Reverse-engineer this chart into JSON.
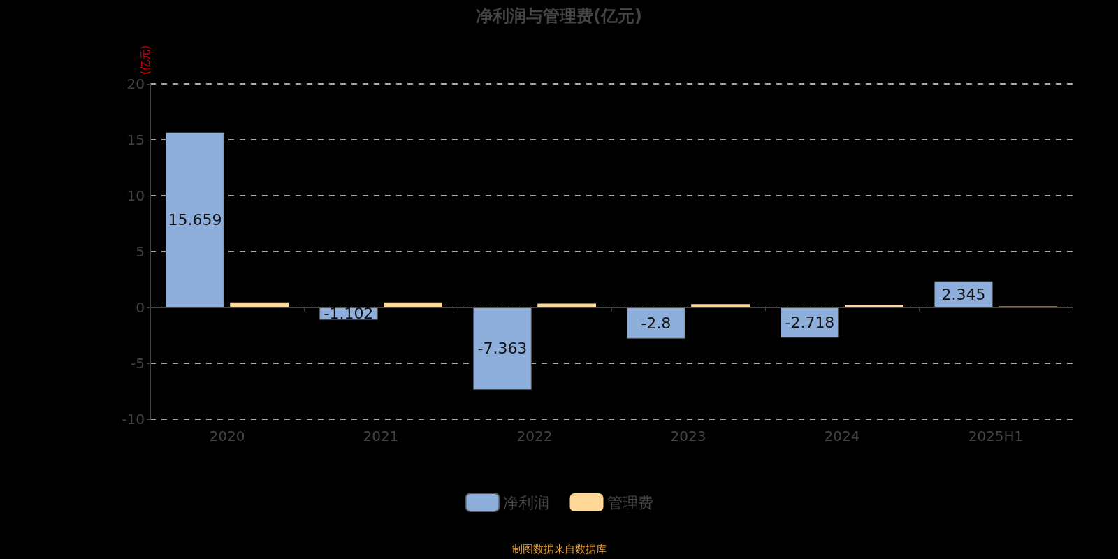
{
  "chart_data": {
    "type": "bar",
    "title": "净利润与管理费(亿元)",
    "ylabel": "(亿元)",
    "categories": [
      "2020",
      "2021",
      "2022",
      "2023",
      "2024",
      "2025H1"
    ],
    "series": [
      {
        "name": "净利润",
        "color": "#8eaedb",
        "values": [
          15.659,
          -1.102,
          -7.363,
          -2.8,
          -2.718,
          2.345
        ],
        "value_labels": [
          "15.659",
          "-1.102",
          "-7.363",
          "-2.8",
          "-2.718",
          "2.345"
        ]
      },
      {
        "name": "管理费",
        "color": "#ffd898",
        "values": [
          0.45,
          0.45,
          0.35,
          0.3,
          0.2,
          0.1
        ]
      }
    ],
    "ylim": [
      -10,
      20
    ],
    "yticks": [
      -10,
      -5,
      0,
      5,
      10,
      15,
      20
    ],
    "grid": "y",
    "legend": "bottom",
    "annotations": [
      "制图数据来自数据库"
    ]
  }
}
